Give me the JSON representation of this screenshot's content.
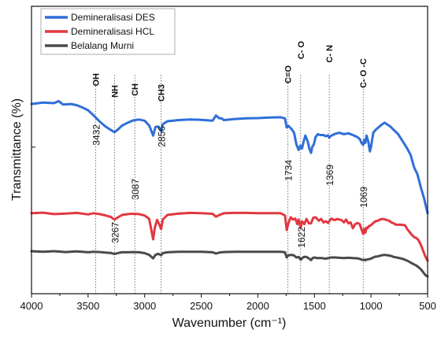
{
  "chart_data": {
    "type": "line",
    "xlabel": "Wavenumber (cm⁻¹)",
    "ylabel": "Transmittance (%)",
    "xlim": [
      4000,
      500
    ],
    "x_reversed": true,
    "ylim": [
      0,
      100
    ],
    "y_ticks_labeled": false,
    "x_ticks": [
      4000,
      3500,
      3000,
      2500,
      2000,
      1500,
      1000,
      500
    ],
    "legend_position": "top-left",
    "grid": false,
    "series": [
      {
        "name": "Demineralisasi DES",
        "color": "#2f6fd8",
        "points": [
          [
            4000,
            66
          ],
          [
            3900,
            66.5
          ],
          [
            3800,
            66.3
          ],
          [
            3760,
            67
          ],
          [
            3720,
            65.8
          ],
          [
            3650,
            66
          ],
          [
            3600,
            65.6
          ],
          [
            3550,
            64.8
          ],
          [
            3500,
            63.8
          ],
          [
            3450,
            62
          ],
          [
            3400,
            60
          ],
          [
            3350,
            58.3
          ],
          [
            3300,
            57
          ],
          [
            3268,
            56.2
          ],
          [
            3240,
            57
          ],
          [
            3200,
            58.5
          ],
          [
            3150,
            59.5
          ],
          [
            3100,
            60.3
          ],
          [
            3050,
            60.6
          ],
          [
            3000,
            60.2
          ],
          [
            2960,
            58.5
          ],
          [
            2925,
            55
          ],
          [
            2905,
            58
          ],
          [
            2880,
            58.2
          ],
          [
            2855,
            56.5
          ],
          [
            2840,
            59
          ],
          [
            2800,
            60
          ],
          [
            2700,
            60.4
          ],
          [
            2600,
            60.6
          ],
          [
            2500,
            60.5
          ],
          [
            2400,
            60.2
          ],
          [
            2370,
            62
          ],
          [
            2340,
            61
          ],
          [
            2320,
            61
          ],
          [
            2300,
            60.4
          ],
          [
            2200,
            60.8
          ],
          [
            2100,
            61
          ],
          [
            2000,
            61.1
          ],
          [
            1900,
            61.3
          ],
          [
            1800,
            61.4
          ],
          [
            1760,
            61
          ],
          [
            1745,
            57.8
          ],
          [
            1730,
            58.4
          ],
          [
            1700,
            57.2
          ],
          [
            1680,
            56
          ],
          [
            1660,
            52
          ],
          [
            1640,
            50
          ],
          [
            1625,
            51.5
          ],
          [
            1610,
            50.5
          ],
          [
            1595,
            53
          ],
          [
            1580,
            55
          ],
          [
            1560,
            53
          ],
          [
            1545,
            50.5
          ],
          [
            1530,
            49
          ],
          [
            1520,
            51
          ],
          [
            1505,
            52
          ],
          [
            1490,
            54.5
          ],
          [
            1470,
            55.5
          ],
          [
            1450,
            55.2
          ],
          [
            1420,
            55.2
          ],
          [
            1400,
            54.8
          ],
          [
            1380,
            55.1
          ],
          [
            1370,
            54.3
          ],
          [
            1350,
            55
          ],
          [
            1320,
            55.6
          ],
          [
            1280,
            56
          ],
          [
            1240,
            55.5
          ],
          [
            1200,
            55.8
          ],
          [
            1160,
            55.2
          ],
          [
            1120,
            54.5
          ],
          [
            1100,
            53.8
          ],
          [
            1080,
            52.2
          ],
          [
            1069,
            51.8
          ],
          [
            1060,
            53.5
          ],
          [
            1050,
            52.5
          ],
          [
            1040,
            55
          ],
          [
            1025,
            53
          ],
          [
            1010,
            49.5
          ],
          [
            1000,
            51
          ],
          [
            980,
            56
          ],
          [
            960,
            57
          ],
          [
            930,
            58
          ],
          [
            900,
            59
          ],
          [
            880,
            59.5
          ],
          [
            860,
            59
          ],
          [
            830,
            58.2
          ],
          [
            800,
            57
          ],
          [
            760,
            55.5
          ],
          [
            720,
            53
          ],
          [
            680,
            50.5
          ],
          [
            650,
            48.3
          ],
          [
            620,
            44
          ],
          [
            590,
            41.5
          ],
          [
            560,
            37
          ],
          [
            530,
            33
          ],
          [
            510,
            29.5
          ],
          [
            500,
            28
          ]
        ]
      },
      {
        "name": "Demineralisasi HCL",
        "color": "#e2383f",
        "points": [
          [
            4000,
            28
          ],
          [
            3900,
            28.2
          ],
          [
            3800,
            27.7
          ],
          [
            3700,
            27.9
          ],
          [
            3600,
            28.1
          ],
          [
            3500,
            27.6
          ],
          [
            3450,
            28
          ],
          [
            3400,
            27.7
          ],
          [
            3350,
            27.3
          ],
          [
            3300,
            26.7
          ],
          [
            3267,
            25.8
          ],
          [
            3230,
            26.7
          ],
          [
            3200,
            27.4
          ],
          [
            3150,
            27.7
          ],
          [
            3100,
            27.8
          ],
          [
            3050,
            27.7
          ],
          [
            3000,
            27.2
          ],
          [
            2960,
            26
          ],
          [
            2925,
            18.9
          ],
          [
            2910,
            23
          ],
          [
            2890,
            25.7
          ],
          [
            2870,
            24
          ],
          [
            2855,
            22.5
          ],
          [
            2840,
            25.8
          ],
          [
            2800,
            27.4
          ],
          [
            2700,
            27.9
          ],
          [
            2600,
            28.1
          ],
          [
            2500,
            28
          ],
          [
            2400,
            27.8
          ],
          [
            2370,
            26.8
          ],
          [
            2340,
            27.4
          ],
          [
            2300,
            28
          ],
          [
            2200,
            28.1
          ],
          [
            2100,
            28.1
          ],
          [
            2000,
            28
          ],
          [
            1900,
            28
          ],
          [
            1800,
            28
          ],
          [
            1760,
            27.2
          ],
          [
            1745,
            22.2
          ],
          [
            1730,
            24.5
          ],
          [
            1710,
            26.6
          ],
          [
            1690,
            25.8
          ],
          [
            1670,
            26.1
          ],
          [
            1650,
            24.2
          ],
          [
            1640,
            25.8
          ],
          [
            1622,
            23
          ],
          [
            1610,
            25.2
          ],
          [
            1590,
            24.2
          ],
          [
            1570,
            26
          ],
          [
            1550,
            24.5
          ],
          [
            1530,
            24.5
          ],
          [
            1510,
            26.4
          ],
          [
            1490,
            26.6
          ],
          [
            1460,
            25.4
          ],
          [
            1440,
            26
          ],
          [
            1420,
            24.8
          ],
          [
            1400,
            25.2
          ],
          [
            1380,
            24.6
          ],
          [
            1370,
            25.2
          ],
          [
            1350,
            26.1
          ],
          [
            1320,
            25.6
          ],
          [
            1300,
            26
          ],
          [
            1260,
            25.6
          ],
          [
            1240,
            24.8
          ],
          [
            1220,
            25.8
          ],
          [
            1200,
            24.5
          ],
          [
            1180,
            24.8
          ],
          [
            1160,
            22.8
          ],
          [
            1140,
            24.2
          ],
          [
            1120,
            24.6
          ],
          [
            1100,
            24.2
          ],
          [
            1085,
            22.5
          ],
          [
            1069,
            20.8
          ],
          [
            1060,
            22.6
          ],
          [
            1050,
            21.2
          ],
          [
            1040,
            23
          ],
          [
            1030,
            22.8
          ],
          [
            1020,
            23.5
          ],
          [
            1000,
            23.8
          ],
          [
            980,
            24.6
          ],
          [
            960,
            25.2
          ],
          [
            940,
            25.4
          ],
          [
            920,
            25.8
          ],
          [
            900,
            26
          ],
          [
            880,
            25.9
          ],
          [
            860,
            25.6
          ],
          [
            840,
            25.4
          ],
          [
            820,
            24.8
          ],
          [
            800,
            24.5
          ],
          [
            780,
            24
          ],
          [
            760,
            24
          ],
          [
            730,
            24
          ],
          [
            700,
            23.8
          ],
          [
            680,
            22.5
          ],
          [
            660,
            21.5
          ],
          [
            640,
            20.5
          ],
          [
            620,
            19.7
          ],
          [
            600,
            19.4
          ],
          [
            580,
            18.6
          ],
          [
            560,
            17
          ],
          [
            540,
            15
          ],
          [
            520,
            13
          ],
          [
            500,
            11.5
          ]
        ]
      },
      {
        "name": "Belalang Murni",
        "color": "#4a4a4a",
        "points": [
          [
            4000,
            14.8
          ],
          [
            3900,
            14.6
          ],
          [
            3800,
            14.8
          ],
          [
            3700,
            14.5
          ],
          [
            3600,
            14.7
          ],
          [
            3500,
            14.4
          ],
          [
            3450,
            14.6
          ],
          [
            3400,
            14.5
          ],
          [
            3350,
            14.3
          ],
          [
            3300,
            14.2
          ],
          [
            3267,
            13.8
          ],
          [
            3230,
            14.2
          ],
          [
            3200,
            14.4
          ],
          [
            3150,
            14.4
          ],
          [
            3100,
            14.5
          ],
          [
            3050,
            14.4
          ],
          [
            3000,
            14.1
          ],
          [
            2960,
            13.5
          ],
          [
            2925,
            12.3
          ],
          [
            2905,
            13.5
          ],
          [
            2880,
            13.9
          ],
          [
            2855,
            13.4
          ],
          [
            2840,
            14.1
          ],
          [
            2800,
            14.4
          ],
          [
            2700,
            14.6
          ],
          [
            2600,
            14.6
          ],
          [
            2500,
            14.6
          ],
          [
            2400,
            14.4
          ],
          [
            2370,
            14
          ],
          [
            2340,
            14.3
          ],
          [
            2300,
            14.5
          ],
          [
            2200,
            14.6
          ],
          [
            2100,
            14.6
          ],
          [
            2000,
            14.6
          ],
          [
            1900,
            14.6
          ],
          [
            1800,
            14.6
          ],
          [
            1760,
            14.4
          ],
          [
            1745,
            12.6
          ],
          [
            1730,
            13.4
          ],
          [
            1700,
            13.5
          ],
          [
            1680,
            13.3
          ],
          [
            1660,
            12.6
          ],
          [
            1640,
            12.8
          ],
          [
            1622,
            11.8
          ],
          [
            1605,
            12.5
          ],
          [
            1590,
            12.8
          ],
          [
            1570,
            12.8
          ],
          [
            1550,
            12.3
          ],
          [
            1530,
            11.7
          ],
          [
            1515,
            12.4
          ],
          [
            1500,
            12.6
          ],
          [
            1480,
            12.4
          ],
          [
            1460,
            12.4
          ],
          [
            1440,
            12.4
          ],
          [
            1420,
            12.3
          ],
          [
            1400,
            12.2
          ],
          [
            1370,
            12.5
          ],
          [
            1350,
            12.6
          ],
          [
            1320,
            12.6
          ],
          [
            1280,
            12.5
          ],
          [
            1240,
            12.4
          ],
          [
            1200,
            12.5
          ],
          [
            1160,
            12.4
          ],
          [
            1120,
            12.3
          ],
          [
            1100,
            12.1
          ],
          [
            1080,
            11.8
          ],
          [
            1069,
            11.7
          ],
          [
            1060,
            11.9
          ],
          [
            1050,
            11.6
          ],
          [
            1040,
            11.9
          ],
          [
            1020,
            12
          ],
          [
            1000,
            12.2
          ],
          [
            980,
            12.6
          ],
          [
            960,
            12.9
          ],
          [
            940,
            13
          ],
          [
            920,
            13.2
          ],
          [
            900,
            13.4
          ],
          [
            880,
            13.5
          ],
          [
            860,
            13.4
          ],
          [
            840,
            13.3
          ],
          [
            820,
            13.1
          ],
          [
            800,
            12.8
          ],
          [
            760,
            12.5
          ],
          [
            720,
            12.1
          ],
          [
            680,
            11.5
          ],
          [
            640,
            10.6
          ],
          [
            600,
            9.8
          ],
          [
            580,
            9.2
          ],
          [
            560,
            8.5
          ],
          [
            540,
            7.5
          ],
          [
            520,
            6.5
          ],
          [
            500,
            6
          ]
        ]
      }
    ],
    "group_labels": [
      {
        "text": "OH",
        "x": 3432
      },
      {
        "text": "NH",
        "x": 3267
      },
      {
        "text": "CH",
        "x": 3087
      },
      {
        "text": "CH3",
        "x": 2856
      },
      {
        "text": "C=O",
        "x": 1734
      },
      {
        "text": "C- O",
        "x": 1622
      },
      {
        "text": "C- N",
        "x": 1369
      },
      {
        "text": "C- O -C",
        "x": 1069
      }
    ],
    "reference_lines": [
      3432,
      3267,
      3087,
      2856,
      1734,
      1622,
      1369,
      1069
    ],
    "peak_labels": [
      {
        "text": "3432",
        "x": 3432
      },
      {
        "text": "2856",
        "x": 2856
      },
      {
        "text": "1734",
        "x": 1734
      },
      {
        "text": "1369",
        "x": 1369
      },
      {
        "text": "3087",
        "x": 3087
      },
      {
        "text": "1069",
        "x": 1069
      },
      {
        "text": "3267",
        "x": 3267
      },
      {
        "text": "1622",
        "x": 1622
      }
    ]
  }
}
